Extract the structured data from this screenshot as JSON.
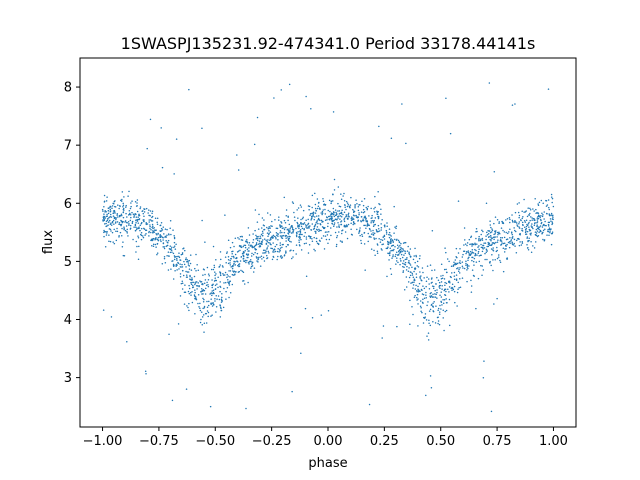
{
  "chart_data": {
    "type": "scatter",
    "title": "1SWASPJ135231.92-474341.0 Period 33178.44141s",
    "xlabel": "phase",
    "ylabel": "flux",
    "xlim": [
      -1.1,
      1.1
    ],
    "ylim": [
      2.15,
      8.5
    ],
    "xticks": [
      -1.0,
      -0.75,
      -0.5,
      -0.25,
      0.0,
      0.25,
      0.5,
      0.75,
      1.0
    ],
    "xtick_labels": [
      "−1.00",
      "−0.75",
      "−0.50",
      "−0.25",
      "0.00",
      "0.25",
      "0.50",
      "0.75",
      "1.00"
    ],
    "yticks": [
      3,
      4,
      5,
      6,
      7,
      8
    ],
    "ytick_labels": [
      "3",
      "4",
      "5",
      "6",
      "7",
      "8"
    ],
    "grid": false,
    "legend": "none",
    "color": "#1f77b4",
    "series": [
      {
        "phase_range": [
          -1.0,
          1.0
        ],
        "profile_phase": [
          0.0,
          0.1,
          0.2,
          0.3,
          0.35,
          0.4,
          0.45,
          0.5,
          0.55,
          0.6,
          0.7,
          0.8,
          0.9,
          1.0
        ],
        "profile_flux_median": [
          5.75,
          5.75,
          5.6,
          5.25,
          4.95,
          4.6,
          4.35,
          4.45,
          4.7,
          5.0,
          5.3,
          5.45,
          5.6,
          5.7
        ],
        "profile_spread": [
          0.35,
          0.35,
          0.35,
          0.35,
          0.4,
          0.5,
          0.55,
          0.55,
          0.5,
          0.4,
          0.35,
          0.35,
          0.35,
          0.35
        ],
        "min_flux_at_minima": 3.6,
        "outlier_range": [
          2.4,
          8.2
        ]
      }
    ]
  }
}
